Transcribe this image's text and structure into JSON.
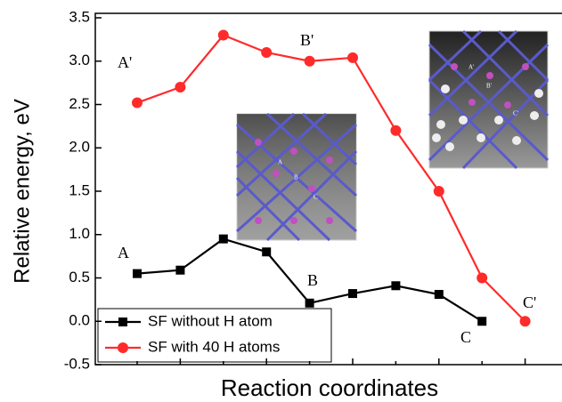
{
  "chart_data": {
    "type": "line",
    "y_label": "Relative energy, eV",
    "x_label": "Reaction coordinates",
    "categories": [
      null,
      null,
      null,
      null,
      null,
      null,
      null,
      null,
      null,
      null
    ],
    "series": [
      {
        "name": "SF without H atom",
        "color": "#000000",
        "marker": "square",
        "values": [
          0.55,
          0.59,
          0.95,
          0.8,
          0.21,
          0.32,
          0.41,
          0.31,
          0.0,
          null
        ]
      },
      {
        "name": "SF with 40 H atoms",
        "color": "#ff2a2a",
        "marker": "circle",
        "values": [
          2.52,
          2.7,
          3.3,
          3.1,
          3.0,
          3.04,
          2.2,
          1.5,
          0.5,
          0.0
        ]
      }
    ],
    "ylim": [
      -0.5,
      3.5
    ],
    "yticks": [
      -0.5,
      {
        "value": 0,
        "label": "0.0"
      },
      0.5,
      {
        "value": 1,
        "label": "1.0"
      },
      1.5,
      {
        "value": 2,
        "label": "2.0"
      },
      2.5,
      {
        "value": 3,
        "label": "3.0"
      },
      3.5
    ],
    "annotations": [
      "A'",
      "B'",
      "C'",
      "A",
      "B",
      "C"
    ],
    "inset_labels": [
      "A",
      "B",
      "C",
      "A'",
      "B'",
      "C'"
    ],
    "legend": "lower left"
  }
}
